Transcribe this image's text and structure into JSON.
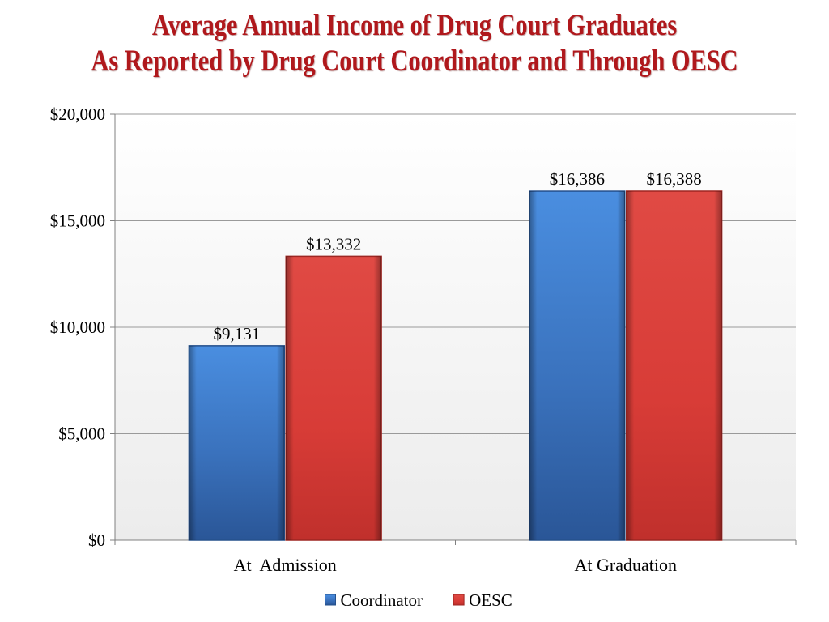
{
  "title": {
    "line1": "Average Annual Income of Drug Court Graduates",
    "line2": "As Reported by Drug Court Coordinator and Through OESC"
  },
  "chart_data": {
    "type": "bar",
    "categories": [
      "At  Admission",
      "At Graduation"
    ],
    "series": [
      {
        "name": "Coordinator",
        "values": [
          9131,
          16386
        ],
        "labels": [
          "$9,131",
          "$16,386"
        ],
        "color": "#3a78c8"
      },
      {
        "name": "OESC",
        "values": [
          13332,
          16388
        ],
        "labels": [
          "$13,332",
          "$16,388"
        ],
        "color": "#d63b36"
      }
    ],
    "ylim": [
      0,
      20000
    ],
    "yticks": [
      0,
      5000,
      10000,
      15000,
      20000
    ],
    "ytick_labels": [
      "$0",
      "$5,000",
      "$10,000",
      "$15,000",
      "$20,000"
    ],
    "xlabel": "",
    "ylabel": "",
    "grid": true,
    "legend": "bottom"
  }
}
